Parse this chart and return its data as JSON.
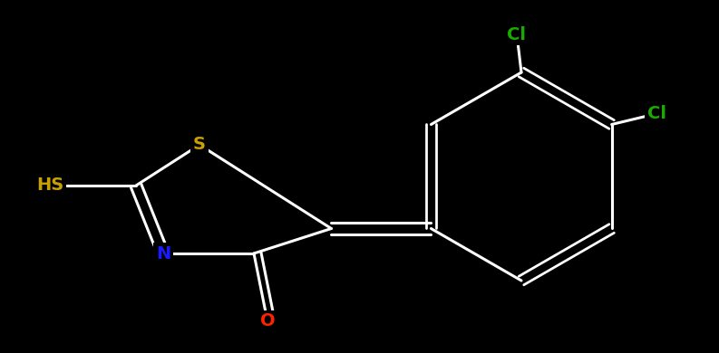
{
  "background_color": "#000000",
  "bond_color": "#ffffff",
  "atom_colors": {
    "S_ring": "#c8a000",
    "S_hs": "#c8a000",
    "N": "#1a1aff",
    "O": "#ff2200",
    "Cl1": "#1aaa00",
    "Cl2": "#1aaa00"
  },
  "figsize": [
    7.93,
    3.9
  ],
  "dpi": 100,
  "xlim": [
    0,
    7.93
  ],
  "ylim": [
    0,
    3.9
  ]
}
